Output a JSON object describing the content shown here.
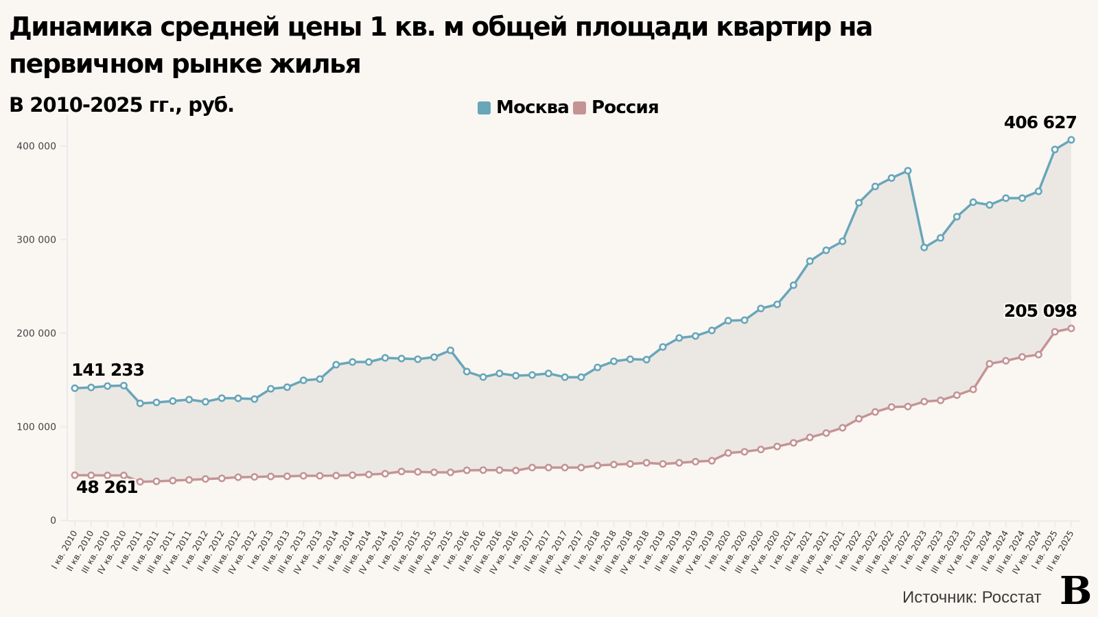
{
  "header": {
    "title": "Динамика средней цены 1 кв. м общей площади квартир на первичном рынке жилья",
    "subtitle": "В 2010-2025 гг., руб."
  },
  "legend": [
    {
      "label": "Москва",
      "color": "#68a6b9"
    },
    {
      "label": "Россия",
      "color": "#c49494"
    }
  ],
  "footer": {
    "source": "Источник: Росстат",
    "logo": "В"
  },
  "colors": {
    "background": "#faf6f2",
    "area_fill": "#ebe8e4",
    "moscow": "#68a6b9",
    "russia": "#c49494",
    "axis": "#ebebeb"
  },
  "chart_data": {
    "type": "line",
    "title": "Динамика средней цены 1 кв. м общей площади квартир на первичном рынке жилья",
    "subtitle": "В 2010-2025 гг., руб.",
    "xlabel": "",
    "ylabel": "",
    "ylim": [
      0,
      420000
    ],
    "yticks": [
      0,
      100000,
      200000,
      300000,
      400000
    ],
    "ytick_labels": [
      "0",
      "100 000",
      "200 000",
      "300 000",
      "400 000"
    ],
    "grid": false,
    "legend_position": "top-center",
    "categories": [
      "I кв. 2010",
      "II кв. 2010",
      "III кв. 2010",
      "IV кв. 2010",
      "I кв. 2011",
      "II кв. 2011",
      "III кв. 2011",
      "IV кв. 2011",
      "I кв. 2012",
      "II кв. 2012",
      "III кв. 2012",
      "IV кв. 2012",
      "I кв. 2013",
      "II кв. 2013",
      "III кв. 2013",
      "IV кв. 2013",
      "I кв. 2014",
      "II кв. 2014",
      "III кв. 2014",
      "IV кв. 2014",
      "I кв. 2015",
      "II кв. 2015",
      "III кв. 2015",
      "IV кв. 2015",
      "I кв. 2016",
      "II кв. 2016",
      "III кв. 2016",
      "IV кв. 2016",
      "I кв. 2017",
      "II кв. 2017",
      "III кв. 2017",
      "IV кв. 2017",
      "I кв. 2018",
      "II кв. 2018",
      "III кв. 2018",
      "IV кв. 2018",
      "I кв. 2019",
      "II кв. 2019",
      "III кв. 2019",
      "IV кв. 2019",
      "I кв. 2020",
      "II кв. 2020",
      "III кв. 2020",
      "IV кв. 2020",
      "I кв. 2021",
      "II кв. 2021",
      "III кв. 2021",
      "IV кв. 2021",
      "I кв. 2022",
      "II кв. 2022",
      "III кв. 2022",
      "IV кв. 2022",
      "I кв. 2023",
      "II кв. 2023",
      "III кв. 2023",
      "IV кв. 2023",
      "I кв. 2024",
      "II кв. 2024",
      "III кв. 2024",
      "IV кв. 2024",
      "I кв. 2025",
      "II кв. 2025"
    ],
    "series": [
      {
        "name": "Москва",
        "color": "#68a6b9",
        "values": [
          141233,
          142000,
          143500,
          144000,
          125000,
          126000,
          127500,
          129000,
          126700,
          130600,
          130400,
          129600,
          140600,
          142300,
          149600,
          151000,
          166300,
          169200,
          169200,
          173600,
          172900,
          172200,
          174400,
          181700,
          159000,
          153100,
          157000,
          154600,
          155300,
          157000,
          153000,
          153000,
          163400,
          170000,
          172200,
          171700,
          185300,
          194900,
          197000,
          202900,
          213400,
          213900,
          226400,
          230800,
          251300,
          277000,
          288600,
          298200,
          339400,
          356800,
          365800,
          373600,
          291600,
          301800,
          324500,
          340000,
          337000,
          344300,
          344300,
          351600,
          396300,
          406627
        ]
      },
      {
        "name": "Россия",
        "color": "#c49494",
        "values": [
          48261,
          48100,
          48000,
          48000,
          41200,
          41700,
          42500,
          43200,
          44200,
          44900,
          46100,
          46400,
          46900,
          47100,
          47600,
          47600,
          47800,
          48300,
          49000,
          49800,
          52200,
          51800,
          51300,
          51300,
          53500,
          53700,
          53700,
          53200,
          56400,
          56400,
          56400,
          56400,
          58600,
          59600,
          60300,
          61500,
          60300,
          61500,
          62700,
          63700,
          72000,
          73300,
          75700,
          78900,
          82800,
          88600,
          93300,
          98900,
          108600,
          115800,
          121100,
          121600,
          126900,
          128200,
          133800,
          139900,
          167300,
          170500,
          174600,
          177100,
          201500,
          205098
        ]
      }
    ],
    "annotations": [
      {
        "text": "141 233",
        "series": "Москва",
        "index": 0,
        "position": "above"
      },
      {
        "text": "48 261",
        "series": "Россия",
        "index": 0,
        "position": "below"
      },
      {
        "text": "406 627",
        "series": "Москва",
        "index": 61,
        "position": "above"
      },
      {
        "text": "205 098",
        "series": "Россия",
        "index": 61,
        "position": "above"
      }
    ]
  }
}
